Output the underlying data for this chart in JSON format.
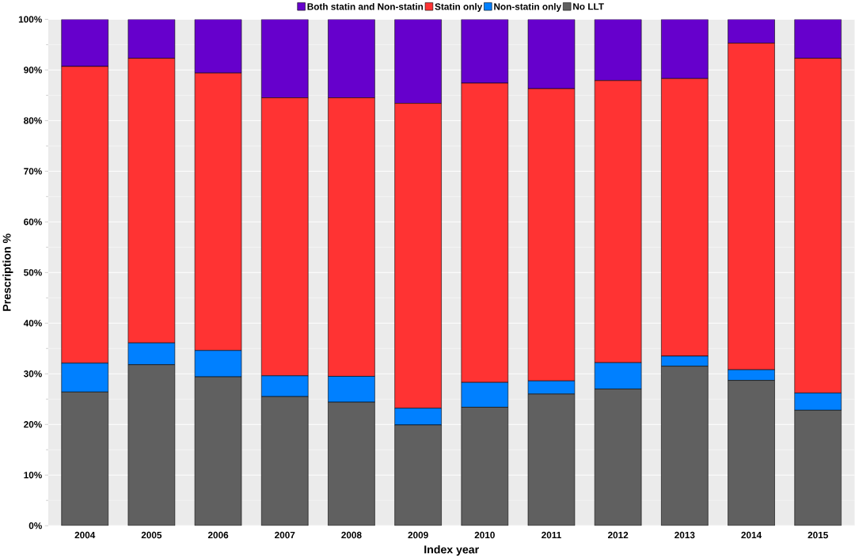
{
  "chart_data": {
    "type": "bar",
    "stacked": true,
    "xlabel": "Index year",
    "ylabel": "Prescription %",
    "categories": [
      "2004",
      "2005",
      "2006",
      "2007",
      "2008",
      "2009",
      "2010",
      "2011",
      "2012",
      "2013",
      "2014",
      "2015"
    ],
    "series": [
      {
        "name": "No LLT",
        "color": "#606060",
        "values": [
          26.4,
          31.8,
          29.4,
          25.5,
          24.4,
          19.9,
          23.4,
          26.0,
          27.0,
          31.5,
          28.7,
          22.8
        ]
      },
      {
        "name": "Non-statin only",
        "color": "#0080ff",
        "values": [
          5.7,
          4.3,
          5.2,
          4.1,
          5.1,
          3.3,
          4.9,
          2.6,
          5.2,
          2.0,
          2.1,
          3.4
        ]
      },
      {
        "name": "Statin only",
        "color": "#ff3333",
        "values": [
          58.6,
          56.2,
          54.8,
          54.9,
          55.0,
          60.2,
          59.1,
          57.7,
          55.7,
          54.8,
          64.5,
          66.1
        ]
      },
      {
        "name": "Both statin and Non-statin",
        "color": "#6600cc",
        "values": [
          9.3,
          7.7,
          10.6,
          15.5,
          15.5,
          16.6,
          12.6,
          13.7,
          12.1,
          11.7,
          4.7,
          7.7
        ]
      }
    ],
    "ylim": [
      0,
      100
    ],
    "yticks": [
      {
        "value": 0,
        "label": "0%"
      },
      {
        "value": 10,
        "label": "10%"
      },
      {
        "value": 20,
        "label": "20%"
      },
      {
        "value": 30,
        "label": "30%"
      },
      {
        "value": 40,
        "label": "40%"
      },
      {
        "value": 50,
        "label": "50%"
      },
      {
        "value": 60,
        "label": "60%"
      },
      {
        "value": 70,
        "label": "70%"
      },
      {
        "value": 80,
        "label": "80%"
      },
      {
        "value": 90,
        "label": "90%"
      },
      {
        "value": 100,
        "label": "100%"
      }
    ],
    "grid": true,
    "legend": "top"
  }
}
